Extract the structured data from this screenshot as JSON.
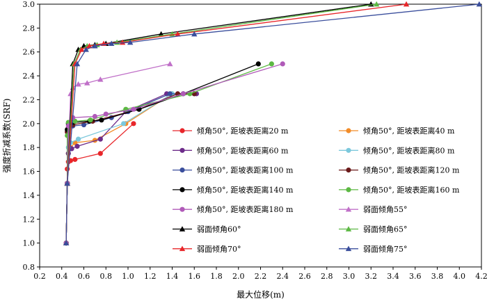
{
  "chart_data": {
    "type": "line",
    "xlabel": "最大位移(m)",
    "ylabel": "强度折减系数(SRF)",
    "xlim": [
      0.2,
      4.2
    ],
    "ylim": [
      0.8,
      3.0
    ],
    "xticks": [
      "0.2",
      "0.4",
      "0.6",
      "0.8",
      "1.0",
      "1.2",
      "1.4",
      "1.6",
      "1.8",
      "2.0",
      "2.2",
      "2.4",
      "2.6",
      "2.8",
      "3.0",
      "3.2",
      "3.4",
      "3.6",
      "3.8",
      "4.0",
      "4.2"
    ],
    "yticks": [
      "0.8",
      "1.0",
      "1.2",
      "1.4",
      "1.6",
      "1.8",
      "2.0",
      "2.2",
      "2.4",
      "2.6",
      "2.8",
      "3.0"
    ],
    "grid": false,
    "legend_position": "center-right",
    "series": [
      {
        "name": "倾角50°, 距坡表距离20 m",
        "color": "#e8262a",
        "marker": "circle",
        "points": [
          [
            0.44,
            1.0
          ],
          [
            0.45,
            1.5
          ],
          [
            0.45,
            1.62
          ],
          [
            0.46,
            1.68
          ],
          [
            0.48,
            1.69
          ],
          [
            0.52,
            1.7
          ],
          [
            0.75,
            1.75
          ],
          [
            1.05,
            2.0
          ]
        ]
      },
      {
        "name": "倾角50°, 距坡表距离40 m",
        "color": "#f28c28",
        "marker": "circle",
        "points": [
          [
            0.44,
            1.0
          ],
          [
            0.45,
            1.5
          ],
          [
            0.46,
            1.75
          ],
          [
            0.48,
            1.8
          ],
          [
            0.52,
            1.84
          ],
          [
            0.7,
            1.86
          ],
          [
            0.98,
            2.0
          ],
          [
            1.4,
            2.25
          ]
        ]
      },
      {
        "name": "倾角50°, 距坡表距离60 m",
        "color": "#6d2c8a",
        "marker": "circle",
        "points": [
          [
            0.44,
            1.0
          ],
          [
            0.45,
            1.5
          ],
          [
            0.46,
            1.75
          ],
          [
            0.49,
            1.79
          ],
          [
            0.54,
            1.81
          ],
          [
            0.75,
            1.87
          ],
          [
            0.98,
            2.1
          ],
          [
            1.35,
            2.25
          ],
          [
            1.62,
            2.25
          ]
        ]
      },
      {
        "name": "倾角50°, 距坡表距离80 m",
        "color": "#7cc8dc",
        "marker": "circle",
        "points": [
          [
            0.44,
            1.0
          ],
          [
            0.45,
            1.5
          ],
          [
            0.46,
            1.8
          ],
          [
            0.48,
            1.84
          ],
          [
            0.55,
            1.87
          ],
          [
            0.96,
            2.0
          ],
          [
            1.4,
            2.25
          ],
          [
            1.5,
            2.25
          ]
        ]
      },
      {
        "name": "倾角50°, 距坡表距离100 m",
        "color": "#3a4e9c",
        "marker": "circle",
        "points": [
          [
            0.44,
            1.0
          ],
          [
            0.45,
            1.5
          ],
          [
            0.46,
            1.95
          ],
          [
            0.5,
            1.98
          ],
          [
            0.6,
            1.99
          ],
          [
            0.85,
            2.05
          ],
          [
            1.0,
            2.1
          ],
          [
            1.38,
            2.25
          ],
          [
            1.6,
            2.25
          ]
        ]
      },
      {
        "name": "倾角50°, 距坡表距离120 m",
        "color": "#6b1a1a",
        "marker": "circle",
        "points": [
          [
            0.44,
            1.0
          ],
          [
            0.45,
            1.5
          ],
          [
            0.45,
            1.93
          ],
          [
            0.46,
            1.96
          ],
          [
            0.5,
            1.99
          ],
          [
            0.68,
            2.02
          ],
          [
            1.1,
            2.12
          ],
          [
            1.45,
            2.25
          ],
          [
            1.6,
            2.25
          ]
        ]
      },
      {
        "name": "倾角50°, 距坡表距离140 m",
        "color": "#000000",
        "marker": "circle",
        "points": [
          [
            0.44,
            1.0
          ],
          [
            0.45,
            1.5
          ],
          [
            0.45,
            1.95
          ],
          [
            0.46,
            2.0
          ],
          [
            0.5,
            2.01
          ],
          [
            0.65,
            2.02
          ],
          [
            0.76,
            2.03
          ],
          [
            1.1,
            2.12
          ],
          [
            1.5,
            2.25
          ],
          [
            2.18,
            2.5
          ]
        ]
      },
      {
        "name": "倾角50°, 距坡表距离160 m",
        "color": "#5cb843",
        "marker": "circle",
        "points": [
          [
            0.44,
            1.0
          ],
          [
            0.45,
            1.5
          ],
          [
            0.45,
            1.9
          ],
          [
            0.46,
            2.01
          ],
          [
            0.52,
            2.02
          ],
          [
            0.66,
            2.03
          ],
          [
            0.98,
            2.12
          ],
          [
            1.56,
            2.25
          ],
          [
            2.3,
            2.5
          ]
        ]
      },
      {
        "name": "倾角50°, 距坡表距离180 m",
        "color": "#b05ab8",
        "marker": "circle",
        "points": [
          [
            0.44,
            1.0
          ],
          [
            0.45,
            1.5
          ],
          [
            0.46,
            1.98
          ],
          [
            0.5,
            2.05
          ],
          [
            0.7,
            2.06
          ],
          [
            0.8,
            2.08
          ],
          [
            1.05,
            2.12
          ],
          [
            1.5,
            2.25
          ],
          [
            2.4,
            2.5
          ]
        ]
      },
      {
        "name": "弱面倾角55°",
        "color": "#c070c8",
        "marker": "triangle",
        "points": [
          [
            0.44,
            1.0
          ],
          [
            0.45,
            1.5
          ],
          [
            0.48,
            2.25
          ],
          [
            0.5,
            2.3
          ],
          [
            0.55,
            2.33
          ],
          [
            0.63,
            2.34
          ],
          [
            0.75,
            2.37
          ],
          [
            1.38,
            2.5
          ]
        ]
      },
      {
        "name": "弱面倾角60°",
        "color": "#000000",
        "marker": "triangle",
        "points": [
          [
            0.44,
            1.0
          ],
          [
            0.45,
            1.5
          ],
          [
            0.5,
            2.5
          ],
          [
            0.55,
            2.62
          ],
          [
            0.6,
            2.65
          ],
          [
            0.7,
            2.66
          ],
          [
            0.8,
            2.67
          ],
          [
            1.3,
            2.75
          ],
          [
            3.2,
            3.0
          ]
        ]
      },
      {
        "name": "弱面倾角65°",
        "color": "#5cb843",
        "marker": "triangle",
        "points": [
          [
            0.44,
            1.0
          ],
          [
            0.45,
            1.5
          ],
          [
            0.51,
            2.5
          ],
          [
            0.57,
            2.62
          ],
          [
            0.63,
            2.65
          ],
          [
            0.72,
            2.66
          ],
          [
            0.9,
            2.68
          ],
          [
            1.4,
            2.75
          ],
          [
            3.25,
            3.0
          ]
        ]
      },
      {
        "name": "弱面倾角70°",
        "color": "#e8262a",
        "marker": "triangle",
        "points": [
          [
            0.44,
            1.0
          ],
          [
            0.45,
            1.5
          ],
          [
            0.52,
            2.5
          ],
          [
            0.58,
            2.62
          ],
          [
            0.65,
            2.65
          ],
          [
            0.78,
            2.67
          ],
          [
            0.95,
            2.68
          ],
          [
            1.45,
            2.75
          ],
          [
            3.52,
            3.0
          ]
        ]
      },
      {
        "name": "弱面倾角75°",
        "color": "#3a4e9c",
        "marker": "triangle",
        "points": [
          [
            0.44,
            1.0
          ],
          [
            0.45,
            1.5
          ],
          [
            0.54,
            2.5
          ],
          [
            0.62,
            2.62
          ],
          [
            0.7,
            2.65
          ],
          [
            0.85,
            2.67
          ],
          [
            1.02,
            2.68
          ],
          [
            1.6,
            2.75
          ],
          [
            4.18,
            3.0
          ]
        ]
      }
    ]
  }
}
